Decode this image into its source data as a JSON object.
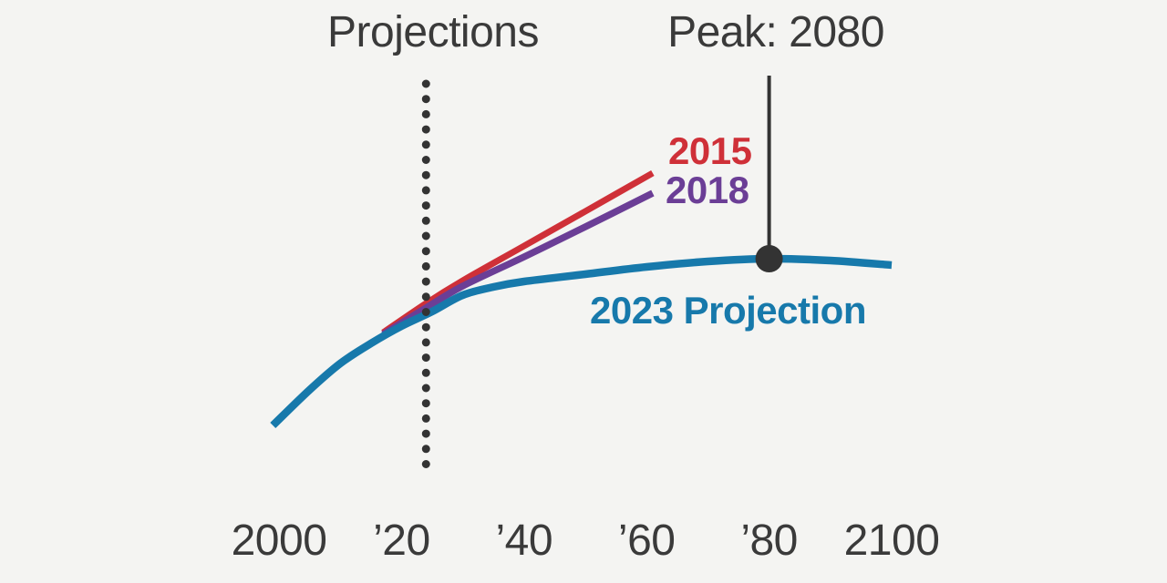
{
  "background_color": "#f4f4f2",
  "text_color": "#3a3a3a",
  "marker_color": "#333333",
  "annotations": {
    "projections_label": "Projections",
    "peak_label": "Peak: 2080"
  },
  "chart_data": {
    "type": "line",
    "title": "",
    "xlabel": "",
    "ylabel": "",
    "x_range": [
      2000,
      2100
    ],
    "grid": false,
    "y_axis_visible": false,
    "units": "relative population level (chart shows no y-axis)",
    "legend": "inline labels at line ends",
    "projection_start_year": 2024,
    "peak": {
      "year": 2080,
      "label": "Peak: 2080"
    },
    "x_ticks": [
      {
        "year": 2000,
        "label": "2000"
      },
      {
        "year": 2020,
        "label": "’20"
      },
      {
        "year": 2040,
        "label": "’40"
      },
      {
        "year": 2060,
        "label": "’60"
      },
      {
        "year": 2080,
        "label": "’80"
      },
      {
        "year": 2100,
        "label": "2100"
      }
    ],
    "series": [
      {
        "label": "2015",
        "color": "#cf3038",
        "stroke_width": 7,
        "points": [
          [
            2017,
            165
          ],
          [
            2024,
            197
          ],
          [
            2030,
            222
          ],
          [
            2040,
            260
          ],
          [
            2050,
            298
          ],
          [
            2061,
            340
          ]
        ]
      },
      {
        "label": "2018",
        "color": "#6b3e96",
        "stroke_width": 7.5,
        "points": [
          [
            2017,
            163
          ],
          [
            2024,
            192
          ],
          [
            2030,
            216
          ],
          [
            2040,
            248
          ],
          [
            2050,
            281
          ],
          [
            2061,
            318
          ]
        ]
      },
      {
        "label": "2023 Projection",
        "color": "#1779ab",
        "stroke_width": 8.5,
        "points": [
          [
            1999,
            63
          ],
          [
            2005,
            102
          ],
          [
            2010,
            131
          ],
          [
            2015,
            153
          ],
          [
            2020,
            172
          ],
          [
            2025,
            188
          ],
          [
            2030,
            206
          ],
          [
            2035,
            215
          ],
          [
            2040,
            221
          ],
          [
            2050,
            229
          ],
          [
            2060,
            237
          ],
          [
            2070,
            243
          ],
          [
            2080,
            246
          ],
          [
            2090,
            244
          ],
          [
            2100,
            239
          ]
        ]
      }
    ]
  }
}
